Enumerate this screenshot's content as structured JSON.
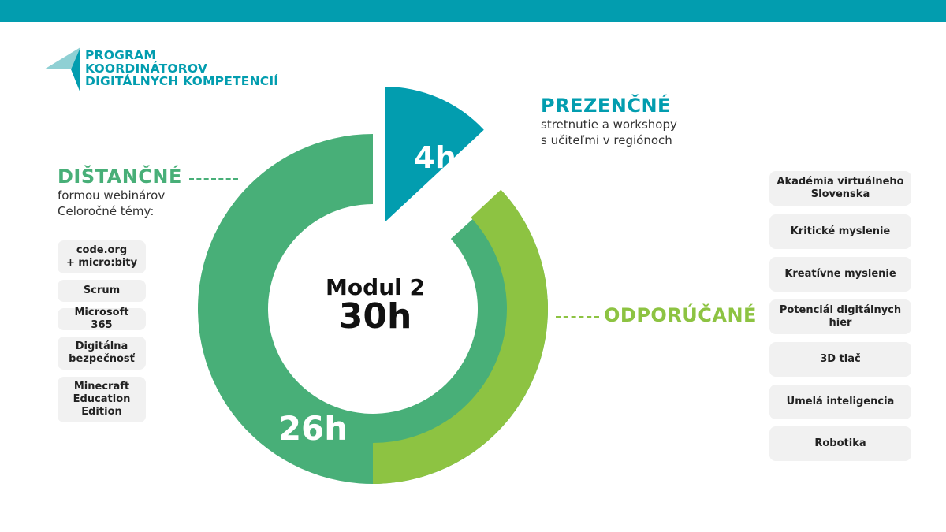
{
  "colors": {
    "teal": "#029daf",
    "green": "#48af78",
    "lime": "#8dc342",
    "logo_light": "#8fd0d4",
    "pill_bg": "#f1f1f1"
  },
  "logo": {
    "line1": "PROGRAM",
    "line2": "KOORDINÁTOROV",
    "line3": "DIGITÁLNYCH KOMPETENCIÍ",
    "icon": "paper-plane-icon"
  },
  "center": {
    "title": "Modul 2",
    "total": "30h"
  },
  "prezencne": {
    "title": "PREZENČNÉ",
    "line1": "stretnutie a workshopy",
    "line2": "s učiteľmi v regiónoch",
    "hours": "4h"
  },
  "distancne": {
    "title": "DIŠTANČNÉ",
    "line1": "formou webinárov",
    "line2": "Celoročné témy:",
    "hours": "26h",
    "topics": [
      "code.org\n+ micro:bity",
      "Scrum",
      "Microsoft 365",
      "Digitálna\nbezpečnosť",
      "Minecraft\nEducation\nEdition"
    ]
  },
  "odporucane": {
    "title": "ODPORÚČANÉ",
    "topics": [
      "Akadémia virtuálneho\nSlovenska",
      "Kritické myslenie",
      "Kreatívne myslenie",
      "Potenciál digitálnych\nhier",
      "3D tlač",
      "Umelá inteligencia",
      "Robotika"
    ]
  }
}
